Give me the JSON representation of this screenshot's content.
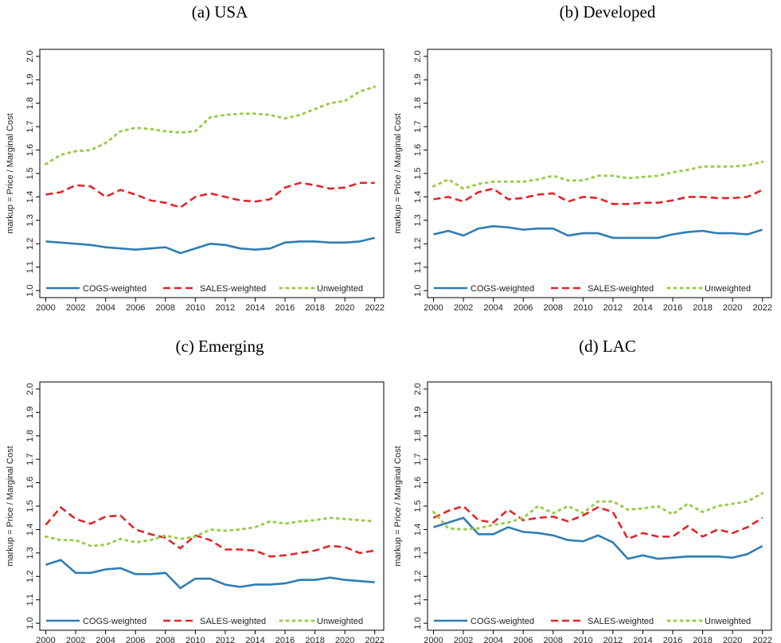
{
  "chart_data": [
    {
      "type": "line",
      "title": "(a) USA",
      "ylabel": "markup = Price / Marginal Cost",
      "legend": "bottom",
      "x": [
        2000,
        2001,
        2002,
        2003,
        2004,
        2005,
        2006,
        2007,
        2008,
        2009,
        2010,
        2011,
        2012,
        2013,
        2014,
        2015,
        2016,
        2017,
        2018,
        2019,
        2020,
        2021,
        2022
      ],
      "xlim": [
        1999.6,
        2022.6
      ],
      "xticks": [
        2000,
        2002,
        2004,
        2006,
        2008,
        2010,
        2012,
        2014,
        2016,
        2018,
        2020,
        2022
      ],
      "ylim": [
        0.97,
        2.03
      ],
      "yticks": [
        {
          "value": 1,
          "label": "1.0"
        },
        1.1,
        1.2,
        1.3,
        1.4,
        1.5,
        1.6,
        1.7,
        1.8,
        1.9,
        {
          "value": 2,
          "label": "2.0"
        }
      ],
      "series": [
        {
          "name": "COGS-weighted",
          "color": "#2f7db3",
          "style": "solid",
          "values": [
            1.21,
            1.205,
            1.2,
            1.195,
            1.185,
            1.18,
            1.175,
            1.18,
            1.185,
            1.16,
            1.18,
            1.2,
            1.195,
            1.18,
            1.175,
            1.18,
            1.205,
            1.21,
            1.21,
            1.205,
            1.205,
            1.21,
            1.225
          ]
        },
        {
          "name": "SALES-weighted",
          "color": "#e0262a",
          "style": "dashed",
          "values": [
            1.41,
            1.42,
            1.45,
            1.445,
            1.4,
            1.43,
            1.41,
            1.385,
            1.375,
            1.355,
            1.4,
            1.415,
            1.4,
            1.385,
            1.38,
            1.39,
            1.44,
            1.46,
            1.45,
            1.435,
            1.44,
            1.46,
            1.46
          ]
        },
        {
          "name": "Unweighted",
          "color": "#9acd4c",
          "style": "dotted",
          "values": [
            1.54,
            1.58,
            1.595,
            1.6,
            1.63,
            1.68,
            1.695,
            1.69,
            1.68,
            1.675,
            1.68,
            1.74,
            1.75,
            1.755,
            1.755,
            1.75,
            1.735,
            1.75,
            1.775,
            1.8,
            1.81,
            1.85,
            1.87
          ]
        }
      ]
    },
    {
      "type": "line",
      "title": "(b) Developed",
      "ylabel": "markup = Price / Marginal Cost",
      "legend": "bottom",
      "x": [
        2000,
        2001,
        2002,
        2003,
        2004,
        2005,
        2006,
        2007,
        2008,
        2009,
        2010,
        2011,
        2012,
        2013,
        2014,
        2015,
        2016,
        2017,
        2018,
        2019,
        2020,
        2021,
        2022
      ],
      "xlim": [
        1999.6,
        2022.6
      ],
      "xticks": [
        2000,
        2002,
        2004,
        2006,
        2008,
        2010,
        2012,
        2014,
        2016,
        2018,
        2020,
        2022
      ],
      "ylim": [
        0.97,
        2.03
      ],
      "yticks": [
        {
          "value": 1,
          "label": "1.0"
        },
        1.1,
        1.2,
        1.3,
        1.4,
        1.5,
        1.6,
        1.7,
        1.8,
        1.9,
        {
          "value": 2,
          "label": "2.0"
        }
      ],
      "series": [
        {
          "name": "COGS-weighted",
          "color": "#2f7db3",
          "style": "solid",
          "values": [
            1.24,
            1.255,
            1.235,
            1.265,
            1.275,
            1.27,
            1.26,
            1.265,
            1.265,
            1.235,
            1.245,
            1.245,
            1.225,
            1.225,
            1.225,
            1.225,
            1.24,
            1.25,
            1.255,
            1.245,
            1.245,
            1.24,
            1.26
          ]
        },
        {
          "name": "SALES-weighted",
          "color": "#e0262a",
          "style": "dashed",
          "values": [
            1.39,
            1.4,
            1.38,
            1.42,
            1.435,
            1.39,
            1.395,
            1.41,
            1.415,
            1.38,
            1.4,
            1.395,
            1.37,
            1.37,
            1.375,
            1.375,
            1.385,
            1.4,
            1.4,
            1.395,
            1.395,
            1.4,
            1.43
          ]
        },
        {
          "name": "Unweighted",
          "color": "#9acd4c",
          "style": "dotted",
          "values": [
            1.445,
            1.475,
            1.435,
            1.455,
            1.465,
            1.465,
            1.465,
            1.475,
            1.49,
            1.47,
            1.47,
            1.49,
            1.49,
            1.48,
            1.485,
            1.49,
            1.505,
            1.515,
            1.53,
            1.53,
            1.53,
            1.535,
            1.55
          ]
        }
      ]
    },
    {
      "type": "line",
      "title": "(c) Emerging",
      "ylabel": "markup = Price / Marginal Cost",
      "legend": "bottom",
      "x": [
        2000,
        2001,
        2002,
        2003,
        2004,
        2005,
        2006,
        2007,
        2008,
        2009,
        2010,
        2011,
        2012,
        2013,
        2014,
        2015,
        2016,
        2017,
        2018,
        2019,
        2020,
        2021,
        2022
      ],
      "xlim": [
        1999.6,
        2022.6
      ],
      "xticks": [
        2000,
        2002,
        2004,
        2006,
        2008,
        2010,
        2012,
        2014,
        2016,
        2018,
        2020,
        2022
      ],
      "ylim": [
        0.97,
        2.03
      ],
      "yticks": [
        {
          "value": 1,
          "label": "1.0"
        },
        1.1,
        1.2,
        1.3,
        1.4,
        1.5,
        1.6,
        1.7,
        1.8,
        1.9,
        {
          "value": 2,
          "label": "2.0"
        }
      ],
      "series": [
        {
          "name": "COGS-weighted",
          "color": "#2f7db3",
          "style": "solid",
          "values": [
            1.25,
            1.27,
            1.215,
            1.215,
            1.23,
            1.235,
            1.21,
            1.21,
            1.215,
            1.15,
            1.19,
            1.19,
            1.165,
            1.155,
            1.165,
            1.165,
            1.17,
            1.185,
            1.185,
            1.195,
            1.185,
            1.18,
            1.175
          ]
        },
        {
          "name": "SALES-weighted",
          "color": "#e0262a",
          "style": "dashed",
          "values": [
            1.42,
            1.495,
            1.445,
            1.425,
            1.455,
            1.46,
            1.4,
            1.38,
            1.365,
            1.32,
            1.375,
            1.355,
            1.315,
            1.315,
            1.31,
            1.285,
            1.29,
            1.3,
            1.31,
            1.33,
            1.325,
            1.3,
            1.31
          ]
        },
        {
          "name": "Unweighted",
          "color": "#9acd4c",
          "style": "dotted",
          "values": [
            1.37,
            1.355,
            1.355,
            1.33,
            1.335,
            1.36,
            1.345,
            1.355,
            1.375,
            1.36,
            1.37,
            1.4,
            1.395,
            1.4,
            1.41,
            1.435,
            1.425,
            1.435,
            1.44,
            1.45,
            1.445,
            1.44,
            1.435
          ]
        }
      ]
    },
    {
      "type": "line",
      "title": "(d) LAC",
      "ylabel": "markup = Price / Marginal Cost",
      "legend": "bottom",
      "x": [
        2000,
        2001,
        2002,
        2003,
        2004,
        2005,
        2006,
        2007,
        2008,
        2009,
        2010,
        2011,
        2012,
        2013,
        2014,
        2015,
        2016,
        2017,
        2018,
        2019,
        2020,
        2021,
        2022
      ],
      "xlim": [
        1999.6,
        2022.6
      ],
      "xticks": [
        2000,
        2002,
        2004,
        2006,
        2008,
        2010,
        2012,
        2014,
        2016,
        2018,
        2020,
        2022
      ],
      "ylim": [
        0.97,
        2.03
      ],
      "yticks": [
        {
          "value": 1,
          "label": "1.0"
        },
        1.1,
        1.2,
        1.3,
        1.4,
        1.5,
        1.6,
        1.7,
        1.8,
        1.9,
        {
          "value": 2,
          "label": "2.0"
        }
      ],
      "series": [
        {
          "name": "COGS-weighted",
          "color": "#2f7db3",
          "style": "solid",
          "values": [
            1.41,
            1.43,
            1.45,
            1.38,
            1.38,
            1.41,
            1.39,
            1.385,
            1.375,
            1.355,
            1.35,
            1.375,
            1.345,
            1.275,
            1.29,
            1.275,
            1.28,
            1.285,
            1.285,
            1.285,
            1.28,
            1.295,
            1.33
          ]
        },
        {
          "name": "SALES-weighted",
          "color": "#e0262a",
          "style": "dashed",
          "values": [
            1.45,
            1.48,
            1.5,
            1.44,
            1.43,
            1.485,
            1.44,
            1.45,
            1.455,
            1.435,
            1.46,
            1.495,
            1.475,
            1.36,
            1.385,
            1.37,
            1.37,
            1.415,
            1.37,
            1.4,
            1.385,
            1.41,
            1.45
          ]
        },
        {
          "name": "Unweighted",
          "color": "#9acd4c",
          "style": "dotted",
          "values": [
            1.475,
            1.405,
            1.4,
            1.405,
            1.42,
            1.43,
            1.45,
            1.5,
            1.47,
            1.5,
            1.47,
            1.52,
            1.52,
            1.485,
            1.49,
            1.5,
            1.465,
            1.51,
            1.475,
            1.5,
            1.51,
            1.52,
            1.555
          ]
        }
      ]
    }
  ]
}
